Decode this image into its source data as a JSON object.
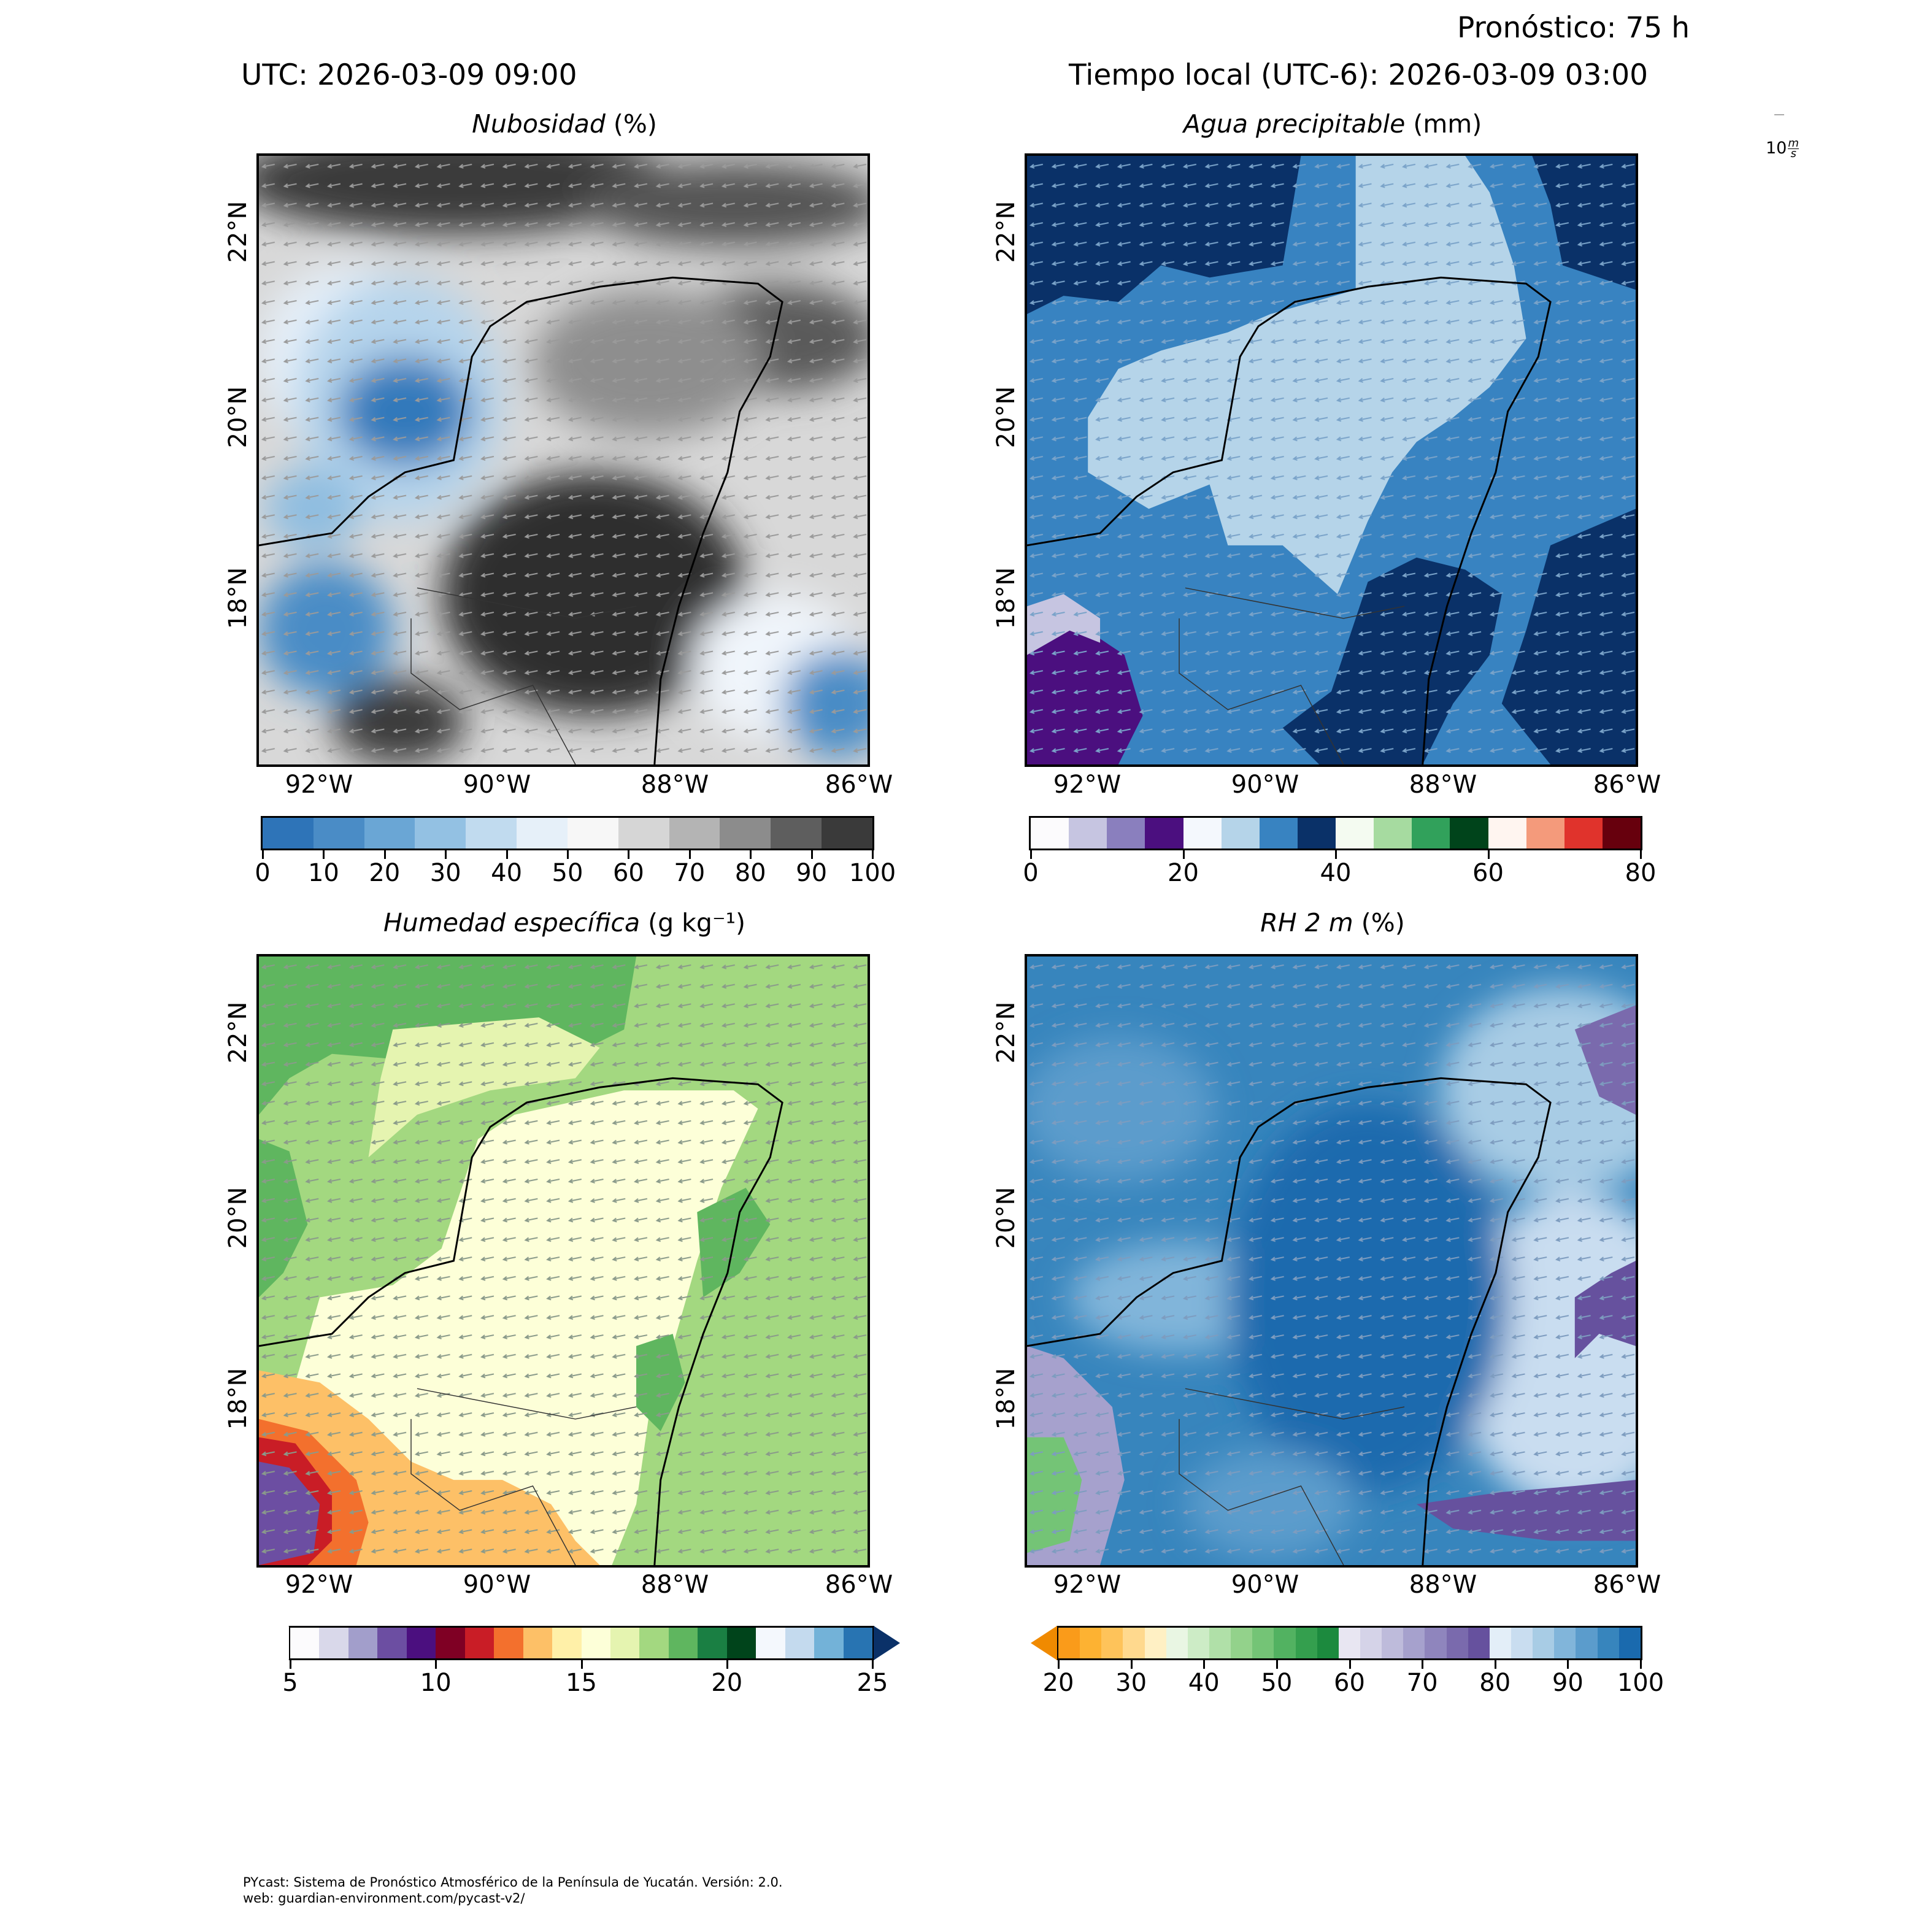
{
  "header": {
    "forecast": "Pronóstico: 75 h",
    "utc": "UTC:  2026-03-09 09:00",
    "local": "Tiempo local (UTC-6): 2026-03-09 03:00"
  },
  "wind_key": {
    "label": "10",
    "unit_sup": "m",
    "unit_sub": "s"
  },
  "panels": {
    "nubosidad": {
      "title": "Nubosidad",
      "unit": "(%)"
    },
    "agua": {
      "title": "Agua precipitable",
      "unit": "(mm)"
    },
    "humedad": {
      "title": "Humedad específica",
      "unit": "(g kg⁻¹)"
    },
    "rh": {
      "title": "RH 2 m",
      "unit": "(%)"
    }
  },
  "axes": {
    "lon": [
      "92°W",
      "90°W",
      "88°W",
      "86°W"
    ],
    "lat": [
      "22°N",
      "20°N",
      "18°N"
    ]
  },
  "colorbars": {
    "nubosidad": {
      "ticks": [
        "0",
        "10",
        "20",
        "30",
        "40",
        "50",
        "60",
        "70",
        "80",
        "90",
        "100"
      ],
      "colors": [
        "#2e74b8",
        "#4a8cc6",
        "#6aa6d5",
        "#93c1e3",
        "#c1dbef",
        "#e6f0f9",
        "#f7f7f7",
        "#d6d6d6",
        "#b4b4b4",
        "#8c8c8c",
        "#5e5e5e",
        "#3a3a3a"
      ]
    },
    "agua": {
      "ticks": [
        "0",
        "20",
        "40",
        "60",
        "80"
      ],
      "colors": [
        "#fcfbfd",
        "#c6c5e1",
        "#8a7fbe",
        "#4b0f7f",
        "#f4f8fd",
        "#b5d4e9",
        "#3883c1",
        "#0a3168",
        "#f4fbf1",
        "#a6dba0",
        "#31a15b",
        "#00441b",
        "#fff5f0",
        "#f49a7b",
        "#e0332c",
        "#67000d"
      ]
    },
    "humedad": {
      "ticks": [
        "5",
        "10",
        "15",
        "20",
        "25"
      ],
      "under": "#ffffff",
      "over": "#0a3168",
      "colors": [
        "#fcfbfd",
        "#d9d8ea",
        "#a29ecb",
        "#6c4ea2",
        "#4b0f7f",
        "#7f0024",
        "#c91d26",
        "#f3702d",
        "#fdc067",
        "#fff0a8",
        "#fdffd8",
        "#e5f4b0",
        "#a3d880",
        "#5fb65f",
        "#1a7f43",
        "#00441b",
        "#f4f8fd",
        "#c4daee",
        "#73b2d8",
        "#2874b2"
      ]
    },
    "rh": {
      "ticks": [
        "20",
        "30",
        "40",
        "50",
        "60",
        "70",
        "80",
        "90",
        "100"
      ],
      "under": "#f08a00",
      "colors": [
        "#fa9b1a",
        "#fdb232",
        "#fec35a",
        "#ffd98e",
        "#fff0c4",
        "#e9f6e3",
        "#cdecc6",
        "#b0e0a8",
        "#93d28b",
        "#74c476",
        "#52b261",
        "#349f4e",
        "#1c8a3e",
        "#e8e6f2",
        "#d5d3e8",
        "#bebbdb",
        "#a6a1cd",
        "#8f85bd",
        "#7a6aad",
        "#66519e",
        "#e3eef8",
        "#c9ddf0",
        "#a8cce5",
        "#81b5da",
        "#5b9ccc",
        "#3785bd",
        "#1a6aae"
      ]
    }
  },
  "footer": {
    "line1": "PYcast: Sistema de Pronóstico Atmosférico de la Península de Yucatán. Versión: 2.0.",
    "line2": "web: guardian-environment.com/pycast-v2/"
  }
}
